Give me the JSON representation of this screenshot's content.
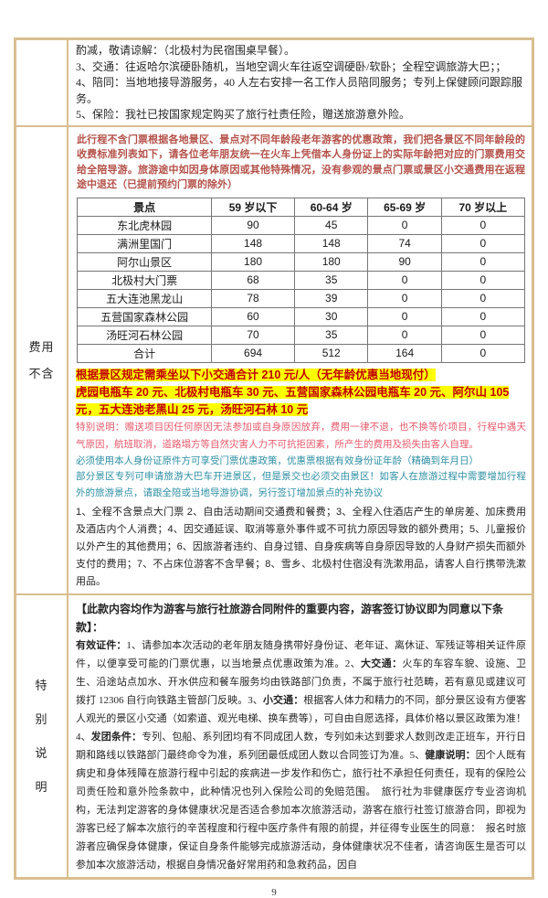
{
  "page": {
    "number": "9"
  },
  "colors": {
    "table_border": "#d9be90",
    "notice_red": "#b4524a",
    "highlight_bg": "#ffff00",
    "highlight_text": "#c00000",
    "pink_note": "#e8596b",
    "teal_text": "#2e8fa3"
  },
  "inclusion": {
    "lines": [
      "酌减，敬请谅解：（北极村为民宿围桌早餐）。",
      "3、交通：往返哈尔滨硬卧随机，当地空调火车往返空调硬卧/软卧；全程空调旅游大巴；；",
      "4、陪同：当地地接导游服务，40 人左右安排一名工作人员陪同服务；专列上保健顾问跟踪服务。",
      "5、保险：我社已按国家规定购买了旅行社责任险，赠送旅游意外险。"
    ]
  },
  "fee_excluded": {
    "label_lines": [
      "费用",
      "不含"
    ],
    "notice": "此行程不含门票根据各地景区、景点对不同年龄段老年游客的优惠政策，我们把各景区不同年龄段的收费标准列表如下，请各位老年朋友统一在火车上凭借本人身份证上的实际年龄把对应的门票费用交给全陪导游。旅游途中如因身体原因或其他特殊情况，没有参观的景点门票或景区小交通费用在返程途中退还（已提前预约门票的除外）",
    "price_table": {
      "headers": [
        "景点",
        "59 岁以下",
        "60-64 岁",
        "65-69 岁",
        "70 岁以上"
      ],
      "rows": [
        [
          "东北虎林园",
          "90",
          "45",
          "0",
          "0"
        ],
        [
          "满洲里国门",
          "148",
          "148",
          "74",
          "0"
        ],
        [
          "阿尔山景区",
          "180",
          "180",
          "90",
          "0"
        ],
        [
          "北极村大门票",
          "68",
          "35",
          "0",
          "0"
        ],
        [
          "五大连池黑龙山",
          "78",
          "39",
          "0",
          "0"
        ],
        [
          "五营国家森林公园",
          "60",
          "30",
          "0",
          "0"
        ],
        [
          "汤旺河石林公园",
          "70",
          "35",
          "0",
          "0"
        ],
        [
          "合计",
          "694",
          "512",
          "164",
          "0"
        ]
      ]
    },
    "highlight": {
      "line1": "根据景区规定需乘坐以下小交通合计 210 元/人（无年龄优惠当地现付）",
      "line2": "虎园电瓶车 20 元、北极村电瓶车 30 元、五营国家森林公园电瓶车 20 元、阿尔山 105 元，五大连池老黑山 25 元，汤旺河石林 10 元"
    },
    "special_note": "特别说明：赠送项目因任何原因无法参加或自身原因放弃，费用一律不退，也不换等价项目，行程中遇天气原因，航班取消，道路塌方等自然灾害人力不可抗拒因素，所产生的费用及损失由客人自理。",
    "id_policy_lines": [
      "必须使用本人身份证原件方可享受门票优惠政策，优惠票根据有效身份证年龄（精确到年月日）",
      "部分景区专列可申请旅游大巴车开进景区，但是景交也必须交由景区！如客人在旅游过程中需要增加行程外的旅游景点，请跟全陪或当地导游协调，另行签订增加景点的补充协议"
    ],
    "excluded_list": "1、全程不含景点大门票 2、自由活动期间交通费和餐费；3、全程入住酒店产生的单房差、加床费用及酒店内个人消费；4、因交通延误、取消等意外事件或不可抗力原因导致的额外费用；5、儿童报价以外产生的其他费用；6、因旅游者违约、自身过错、自身疾病等自身原因导致的人身财产损失而额外支付的费用；7、不占床位游客不含早餐；8、雪乡、北极村住宿没有洗漱用品，请客人自行携带洗漱用品。"
  },
  "special_terms": {
    "label_chars": [
      "特",
      "别",
      "说",
      "明"
    ],
    "header": "【此款内容均作为游客与旅行社旅游合同附件的重要内容，游客签订协议即为同意以下条款】：",
    "body_segments": [
      {
        "t": "有效证件：",
        "b": true
      },
      {
        "t": "1、请参加本次活动的老年朋友随身携带好身份证、老年证、离休证、军残证等相关证件原件，以便享受可能的门票优惠，以当地景点优惠政策为准。2、",
        "b": false
      },
      {
        "t": "大交通：",
        "b": true
      },
      {
        "t": "火车的车容车貌、设施、卫生、沿途站点加水、开水供应和餐车服务均由铁路部门负责，不属于旅行社范畴，若有意见或建议可拨打 12306 自行向铁路主管部门反映。3、",
        "b": false
      },
      {
        "t": "小交通：",
        "b": true
      },
      {
        "t": "根据客人体力和精力的不同，部分景区设有方便客人观光的景区小交通（如索道、观光电梯、换车费等），可自由自愿选择，具体价格以景区政策为准！4、",
        "b": false
      },
      {
        "t": "发团条件：",
        "b": true
      },
      {
        "t": "专列、包船、系列团均有不同成团人数，专列如未达到要求人数则改走正班车，开行日期和路线以铁路部门最终命令为准，系列团最低成团人数以合同签订为准。5、",
        "b": false
      },
      {
        "t": "健康说明：",
        "b": true
      },
      {
        "t": "因个人既有病史和身体残障在旅游行程中引起的疾病进一步发作和伤亡，旅行社不承担任何责任，现有的保险公司责任险和意外险条款中，此种情况也列入保险公司的免赔范围。　旅行社为非健康医疗专业咨询机构，无法判定游客的身体健康状况是否适合参加本次旅游活动，游客在旅行社签订旅游合同，即视为游客已经了解本次旅行的辛苦程度和行程中医疗条件有限的前提，并征得专业医生的同意：　报名时旅游者应确保身体健康，保证自身条件能够完成旅游活动，身体健康状况不佳者，请咨询医生是否可以参加本次旅游活动，根据自身情况备好常用药和急救药品，因自",
        "b": false
      }
    ]
  }
}
